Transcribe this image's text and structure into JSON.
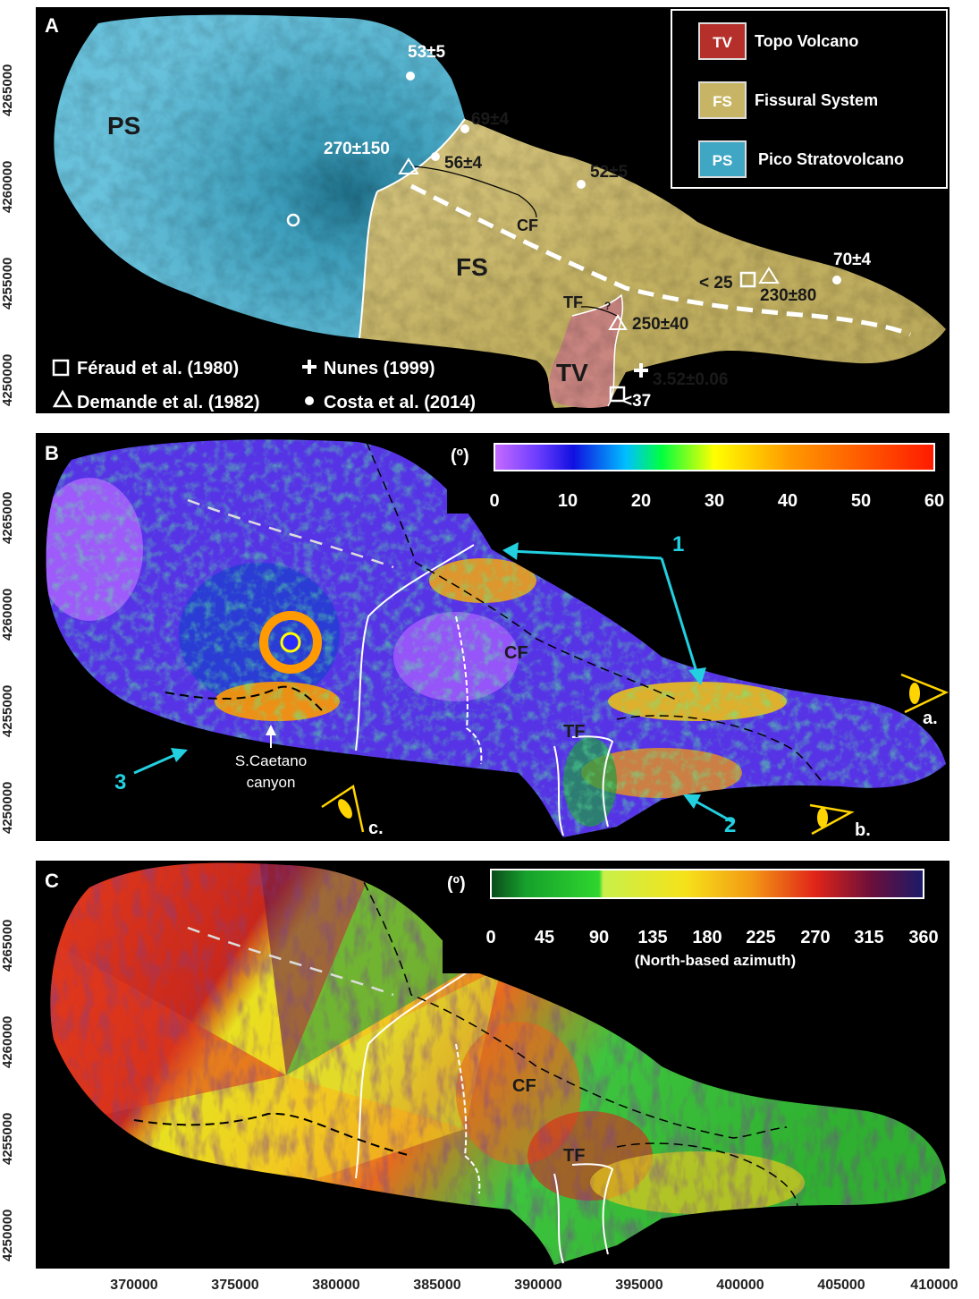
{
  "panels": {
    "a": {
      "letter": "A"
    },
    "b": {
      "letter": "B"
    },
    "c": {
      "letter": "C"
    }
  },
  "y_ticks": [
    "4265000",
    "4260000",
    "4255000",
    "4250000"
  ],
  "x_ticks": [
    "370000",
    "375000",
    "380000",
    "385000",
    "390000",
    "395000",
    "400000",
    "405000",
    "410000"
  ],
  "map_a": {
    "unit_labels": {
      "ps": "PS",
      "fs": "FS",
      "tv": "TV"
    },
    "ages": {
      "a1": "53±5",
      "a2": "69±4",
      "a3": "270±150",
      "a4": "56±4",
      "a5": "52±5",
      "a6": "70±4",
      "a7": "< 25",
      "a8": "230±80",
      "a9": "250±40",
      "a10": "3.52±0.06",
      "a11": "<37"
    },
    "fault_labels": {
      "cf": "CF",
      "tf": "TF",
      "q": "?"
    },
    "legend": {
      "tv_code": "TV",
      "tv_name": "Topo Volcano",
      "tv_color": "#b5302b",
      "fs_code": "FS",
      "fs_name": "Fissural System",
      "fs_color": "#c7b565",
      "ps_code": "PS",
      "ps_name": "Pico Stratovolcano",
      "ps_color": "#3fa6c4"
    },
    "sources": {
      "s1": "Féraud et al. (1980)",
      "s2": "Demande et al. (1982)",
      "s3": "Nunes (1999)",
      "s4": "Costa et al. (2014)"
    }
  },
  "map_b": {
    "scale_unit": "(º)",
    "scale_ticks": [
      "0",
      "10",
      "20",
      "30",
      "40",
      "50",
      "60"
    ],
    "arrows": {
      "n1": "1",
      "n2": "2",
      "n3": "3"
    },
    "views": {
      "va": "a.",
      "vb": "b.",
      "vc": "c."
    },
    "canyon_1": "S.Caetano",
    "canyon_2": "canyon",
    "fault_labels": {
      "cf": "CF",
      "tf": "TF"
    }
  },
  "map_c": {
    "scale_unit": "(º)",
    "scale_ticks": [
      "0",
      "45",
      "90",
      "135",
      "180",
      "225",
      "270",
      "315",
      "360"
    ],
    "scale_caption": "(North-based azimuth)",
    "fault_labels": {
      "cf": "CF",
      "tf": "TF"
    }
  }
}
